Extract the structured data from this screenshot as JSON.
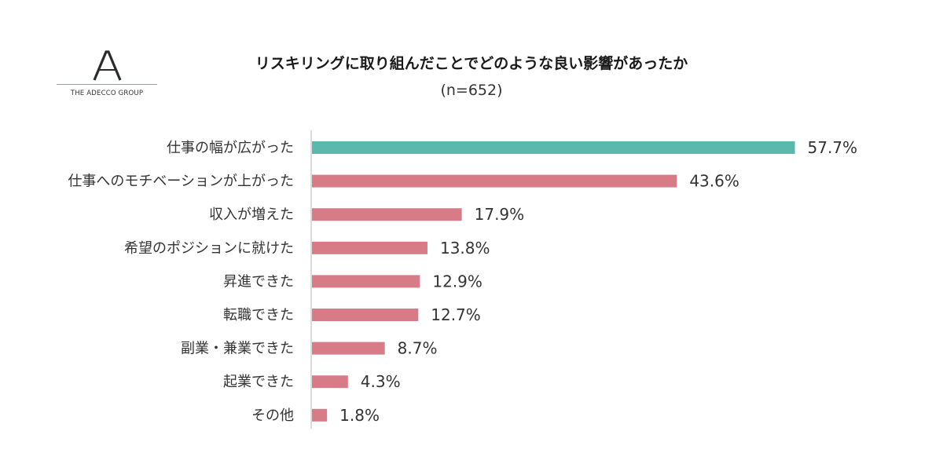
{
  "logo": {
    "text": "THE ADECCO GROUP",
    "mark": "A"
  },
  "colors": {
    "highlight": "#5bb8ad",
    "bar": "#d77c86",
    "axis": "#cfcfcf"
  },
  "chart_data": {
    "type": "bar",
    "orientation": "horizontal",
    "title": "リスキリングに取り組んだことでどのような良い影響があったか",
    "subtitle": "(n=652)",
    "categories": [
      "仕事の幅が広がった",
      "仕事へのモチベーションが上がった",
      "収入が増えた",
      "希望のポジションに就けた",
      "昇進できた",
      "転職できた",
      "副業・兼業できた",
      "起業できた",
      "その他"
    ],
    "values": [
      57.7,
      43.6,
      17.9,
      13.8,
      12.9,
      12.7,
      8.7,
      4.3,
      1.8
    ],
    "value_labels": [
      "57.7%",
      "43.6%",
      "17.9%",
      "13.8%",
      "12.9%",
      "12.7%",
      "8.7%",
      "4.3%",
      "1.8%"
    ],
    "unit": "%",
    "highlight_index": 0,
    "xlabel": "",
    "ylabel": "",
    "grid": false,
    "legend": "none"
  }
}
